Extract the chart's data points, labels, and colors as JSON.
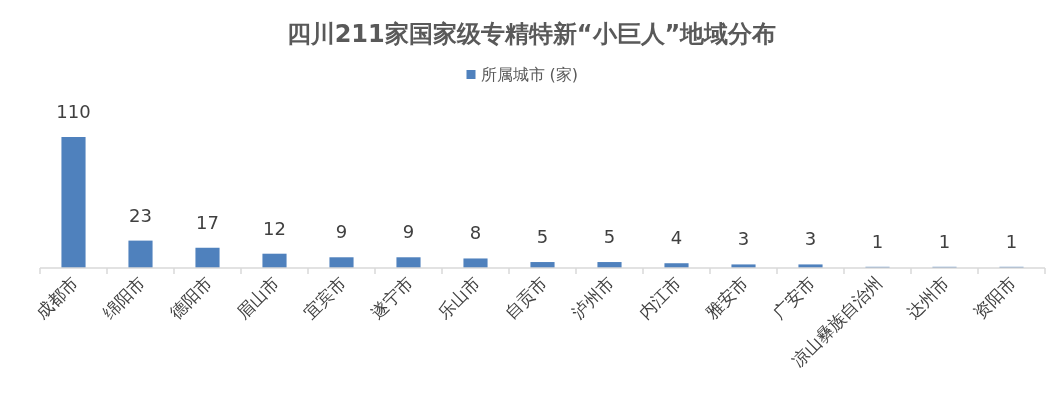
{
  "chart_data": {
    "type": "bar",
    "title": "四川211家国家级专精特新“小巨人”地域分布",
    "categories": [
      "成都市",
      "绵阳市",
      "德阳市",
      "眉山市",
      "宜宾市",
      "遂宁市",
      "乐山市",
      "自贡市",
      "泸州市",
      "内江市",
      "雅安市",
      "广安市",
      "凉山彝族自治州",
      "达州市",
      "资阳市"
    ],
    "series": [
      {
        "name": "所属城市 (家)",
        "color": "#4f81bd",
        "values": [
          110,
          23,
          17,
          12,
          9,
          9,
          8,
          5,
          5,
          4,
          3,
          3,
          1,
          1,
          1
        ]
      }
    ],
    "data_labels": true,
    "legend": "top"
  }
}
